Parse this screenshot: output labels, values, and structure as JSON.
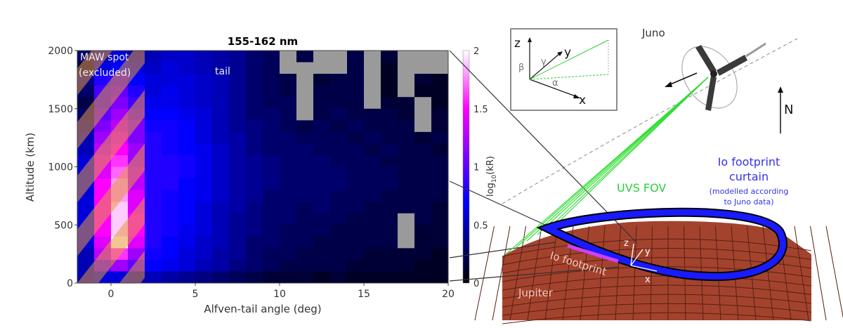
{
  "chart_data": {
    "type": "heatmap",
    "title": "155-162 nm",
    "xlabel": "Alfven-tail angle (deg)",
    "ylabel": "Altitude (km)",
    "xlim": [
      -2,
      20
    ],
    "ylim": [
      0,
      2000
    ],
    "xticks": [
      "0",
      "5",
      "10",
      "15",
      "20"
    ],
    "yticks": [
      "0",
      "500",
      "1000",
      "1500",
      "2000"
    ],
    "x_bin_starts": [
      -2,
      -1,
      0,
      1,
      2,
      3,
      4,
      5,
      6,
      7,
      8,
      9,
      10,
      11,
      12,
      13,
      14,
      15,
      16,
      17,
      18,
      19
    ],
    "x_bin_width": 1,
    "y_bin_starts_top_to_bottom": [
      1900,
      1800,
      1700,
      1600,
      1500,
      1400,
      1300,
      1200,
      1100,
      1000,
      900,
      800,
      700,
      600,
      500,
      400,
      300,
      200,
      100,
      0
    ],
    "y_bin_height": 100,
    "values_note_null": "no data (grey)",
    "values": [
      [
        0.3,
        0.5,
        0.6,
        0.5,
        0.5,
        0.55,
        0.55,
        0.5,
        0.45,
        0.4,
        0.3,
        0.25,
        null,
        0.2,
        null,
        null,
        0.2,
        null,
        0.15,
        null,
        null,
        null
      ],
      [
        0.2,
        0.6,
        0.7,
        0.6,
        0.55,
        0.6,
        0.55,
        0.5,
        0.45,
        0.4,
        0.3,
        0.25,
        null,
        null,
        null,
        null,
        0.2,
        null,
        0.1,
        null,
        null,
        null
      ],
      [
        0.4,
        0.8,
        0.9,
        0.7,
        0.6,
        0.6,
        0.6,
        0.55,
        0.5,
        0.4,
        0.3,
        0.25,
        0.2,
        null,
        0.15,
        0.2,
        0.2,
        null,
        0.1,
        null,
        0.15,
        0.1
      ],
      [
        0.3,
        0.9,
        1.0,
        0.8,
        0.6,
        0.65,
        0.6,
        0.55,
        0.5,
        0.4,
        0.3,
        0.25,
        0.2,
        null,
        0.2,
        0.2,
        0.2,
        null,
        0.1,
        null,
        0.1,
        0.1
      ],
      [
        0.2,
        0.9,
        1.1,
        0.9,
        0.65,
        0.65,
        0.6,
        0.55,
        0.5,
        0.4,
        0.3,
        0.25,
        0.25,
        null,
        0.2,
        0.2,
        0.2,
        null,
        0.15,
        0.15,
        null,
        0.1
      ],
      [
        0.3,
        1.0,
        1.2,
        1.0,
        0.7,
        0.7,
        0.65,
        0.6,
        0.5,
        0.4,
        0.3,
        0.3,
        0.25,
        null,
        0.2,
        0.25,
        0.2,
        0.2,
        0.2,
        0.15,
        null,
        0.15
      ],
      [
        0.4,
        1.1,
        1.3,
        1.1,
        0.75,
        0.75,
        0.7,
        0.6,
        0.5,
        0.4,
        0.35,
        0.3,
        0.25,
        0.2,
        0.25,
        0.2,
        0.25,
        0.2,
        0.2,
        0.2,
        null,
        0.15
      ],
      [
        0.5,
        1.2,
        1.4,
        1.1,
        0.8,
        0.75,
        0.7,
        0.6,
        0.5,
        0.45,
        0.35,
        0.3,
        0.3,
        0.25,
        0.25,
        0.25,
        0.2,
        0.25,
        0.2,
        0.2,
        0.15,
        0.2
      ],
      [
        0.5,
        1.3,
        1.5,
        1.2,
        0.8,
        0.75,
        0.7,
        0.65,
        0.55,
        0.45,
        0.35,
        0.3,
        0.3,
        0.3,
        0.25,
        0.25,
        0.25,
        0.2,
        0.25,
        0.2,
        0.2,
        0.15
      ],
      [
        0.6,
        1.4,
        1.6,
        1.2,
        0.8,
        0.8,
        0.75,
        0.65,
        0.55,
        0.45,
        0.4,
        0.35,
        0.3,
        0.3,
        0.3,
        0.25,
        0.25,
        0.25,
        0.2,
        0.2,
        0.2,
        0.2
      ],
      [
        0.6,
        1.4,
        1.7,
        1.3,
        0.8,
        0.8,
        0.75,
        0.65,
        0.55,
        0.45,
        0.4,
        0.35,
        0.3,
        0.3,
        0.3,
        0.3,
        0.25,
        0.25,
        0.25,
        0.2,
        0.2,
        0.2
      ],
      [
        0.6,
        1.5,
        1.8,
        1.3,
        0.8,
        0.8,
        0.7,
        0.65,
        0.55,
        0.45,
        0.4,
        0.35,
        0.3,
        0.3,
        0.3,
        0.3,
        0.25,
        0.25,
        0.25,
        0.2,
        0.2,
        0.2
      ],
      [
        0.6,
        1.5,
        1.8,
        1.4,
        0.8,
        0.75,
        0.7,
        0.65,
        0.55,
        0.45,
        0.4,
        0.3,
        0.3,
        0.3,
        0.3,
        0.25,
        0.25,
        0.25,
        0.2,
        0.2,
        0.2,
        0.2
      ],
      [
        0.6,
        1.5,
        1.9,
        1.4,
        0.8,
        0.75,
        0.7,
        0.6,
        0.5,
        0.45,
        0.35,
        0.3,
        0.3,
        0.25,
        0.3,
        0.25,
        0.25,
        0.2,
        0.2,
        0.2,
        0.2,
        0.15
      ],
      [
        0.6,
        1.5,
        1.9,
        1.5,
        0.8,
        0.75,
        0.7,
        0.6,
        0.5,
        0.4,
        0.35,
        0.3,
        0.3,
        0.25,
        0.25,
        0.25,
        0.2,
        0.2,
        0.2,
        null,
        0.2,
        0.15
      ],
      [
        0.6,
        1.5,
        1.9,
        1.5,
        0.8,
        0.75,
        0.65,
        0.6,
        0.5,
        0.4,
        0.35,
        0.3,
        0.25,
        0.25,
        0.25,
        0.2,
        0.2,
        0.2,
        0.2,
        null,
        0.15,
        0.15
      ],
      [
        0.6,
        1.4,
        2.0,
        1.4,
        0.8,
        0.7,
        0.65,
        0.55,
        0.5,
        0.4,
        0.3,
        0.3,
        0.25,
        0.25,
        0.2,
        0.2,
        0.2,
        0.2,
        0.2,
        null,
        0.15,
        0.15
      ],
      [
        0.5,
        1.3,
        1.6,
        1.2,
        0.75,
        0.7,
        0.6,
        0.55,
        0.45,
        0.4,
        0.3,
        0.25,
        0.25,
        0.2,
        0.2,
        0.2,
        0.2,
        0.15,
        0.15,
        0.15,
        0.15,
        0.1
      ],
      [
        0.5,
        1.0,
        1.2,
        1.0,
        0.7,
        0.65,
        0.6,
        0.5,
        0.45,
        0.35,
        0.3,
        0.25,
        0.2,
        0.2,
        0.2,
        0.2,
        0.15,
        0.15,
        0.15,
        0.15,
        0.1,
        0.1
      ],
      [
        0.5,
        0.6,
        0.6,
        0.5,
        0.5,
        0.45,
        0.4,
        0.35,
        0.3,
        0.25,
        0.2,
        0.15,
        0.15,
        0.15,
        0.1,
        0.15,
        0.1,
        0.1,
        0.1,
        0.1,
        0.1,
        0.1
      ]
    ],
    "colorbar": {
      "label": "log10(kR)",
      "label_base": "log",
      "label_sub": "10",
      "label_rest": "(kR)",
      "range": [
        0,
        2
      ],
      "ticks": [
        "0",
        "0.5",
        "1",
        "1.5",
        "2"
      ]
    },
    "annotations": {
      "maw": [
        "MAW spot",
        "(excluded)"
      ],
      "maw_range_deg": [
        -2,
        2
      ],
      "tail": "tail"
    }
  },
  "diagram": {
    "juno": "Juno",
    "north": "N",
    "uvs_fov": "UVS FOV",
    "curtain": [
      "Io footprint",
      "curtain"
    ],
    "curtain_note": [
      "(modelled according",
      "to Juno data)"
    ],
    "io_footprint": "Io footprint",
    "jupiter": "Jupiter",
    "inset_axes": {
      "z": "z",
      "y": "y",
      "x": "x",
      "alpha": "α",
      "beta": "β",
      "gamma": "γ"
    },
    "local_axes": {
      "z": "z",
      "y": "y",
      "x": "x"
    }
  },
  "colors": {
    "grey": "#9a9a9a",
    "fov": "#33cc33",
    "curtain": "#1a1aff",
    "jupiter": "#a3432e",
    "maw_hatch": "#e8983c"
  }
}
